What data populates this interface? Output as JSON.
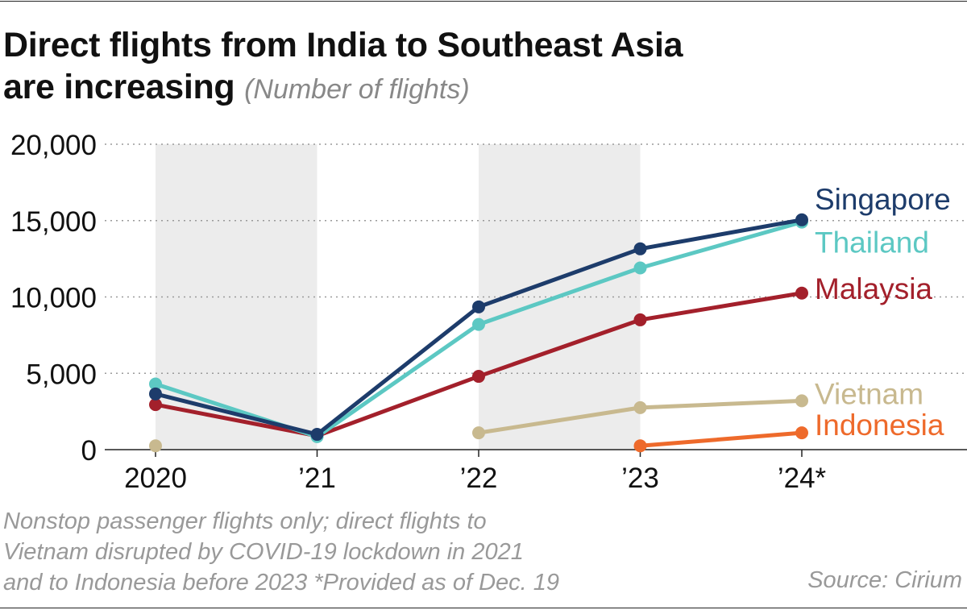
{
  "header": {
    "title_line1": "Direct flights from India to Southeast Asia",
    "title_line2": "are increasing",
    "subtitle": "(Number of flights)"
  },
  "footer": {
    "note_line1": "Nonstop passenger flights only; direct flights to",
    "note_line2": "Vietnam disrupted by COVID-19 lockdown in 2021",
    "note_line3": "and to Indonesia before 2023  *Provided as of Dec. 19",
    "source": "Source: Cirium"
  },
  "chart_data": {
    "type": "line",
    "title": "Direct flights from India to Southeast Asia are increasing",
    "ylabel": "Number of flights",
    "xlabel": "",
    "x": [
      "2020",
      "’21",
      "’22",
      "’23",
      "’24*"
    ],
    "ylim": [
      0,
      20000
    ],
    "yticks": [
      0,
      5000,
      10000,
      15000,
      20000
    ],
    "ytick_labels": [
      "0",
      "5,000",
      "10,000",
      "15,000",
      "20,000"
    ],
    "grid": "horizontal dotted",
    "shaded_periods": [
      "2020-’21",
      "’22-’23"
    ],
    "series": [
      {
        "name": "Vietnam",
        "color": "#c8b98f",
        "values": [
          250,
          null,
          1100,
          2750,
          3200
        ]
      },
      {
        "name": "Indonesia",
        "color": "#ee6a2b",
        "values": [
          null,
          null,
          null,
          250,
          1100
        ]
      },
      {
        "name": "Malaysia",
        "color": "#a3202b",
        "values": [
          2950,
          900,
          4800,
          8500,
          10250
        ]
      },
      {
        "name": "Thailand",
        "color": "#5cc8c3",
        "values": [
          4300,
          850,
          8200,
          11900,
          14900
        ]
      },
      {
        "name": "Singapore",
        "color": "#1d3c6b",
        "values": [
          3650,
          1000,
          9350,
          13150,
          15050
        ]
      }
    ]
  }
}
